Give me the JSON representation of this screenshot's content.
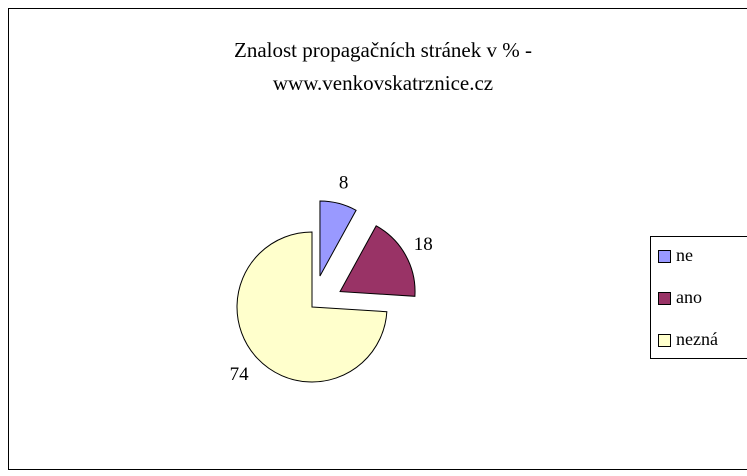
{
  "chart_data": {
    "type": "pie",
    "title": [
      "Znalost propagačních stránek v % -",
      "www.venkovskatrznice.cz"
    ],
    "categories": [
      "ne",
      "ano",
      "nezná"
    ],
    "values": [
      8,
      18,
      74
    ],
    "colors": [
      "#9999ff",
      "#993366",
      "#ffffcc"
    ],
    "legend": "right"
  }
}
